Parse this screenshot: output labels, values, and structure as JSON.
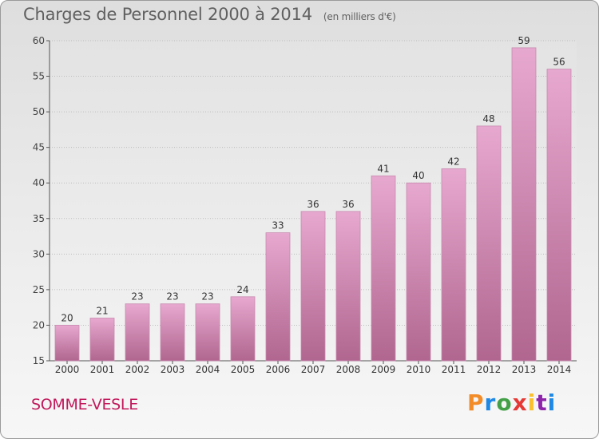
{
  "header": {
    "title": "Charges de Personnel 2000 à 2014",
    "subtitle": "(en milliers d'€)"
  },
  "footer": {
    "commune": "SOMME-VESLE",
    "logo_text": [
      "P",
      "r",
      "o",
      "x",
      "i",
      "t",
      "i"
    ],
    "logo_colors": [
      "#f28c28",
      "#1e88e5",
      "#43a047",
      "#e53935",
      "#fbc02d",
      "#8e24aa",
      "#1e88e5"
    ]
  },
  "chart_data": {
    "type": "bar",
    "title": "Charges de Personnel 2000 à 2014",
    "subtitle": "(en milliers d'€)",
    "categories": [
      "2000",
      "2001",
      "2002",
      "2003",
      "2004",
      "2005",
      "2006",
      "2007",
      "2008",
      "2009",
      "2010",
      "2011",
      "2012",
      "2013",
      "2014"
    ],
    "values": [
      20,
      21,
      23,
      23,
      23,
      24,
      33,
      36,
      36,
      41,
      40,
      42,
      48,
      59,
      56
    ],
    "ylim": [
      15,
      60
    ],
    "yticks": [
      15,
      20,
      25,
      30,
      35,
      40,
      45,
      50,
      55,
      60
    ],
    "grid": true,
    "bar_color_top": "#e7a8cf",
    "bar_color_bottom": "#b0668f"
  }
}
